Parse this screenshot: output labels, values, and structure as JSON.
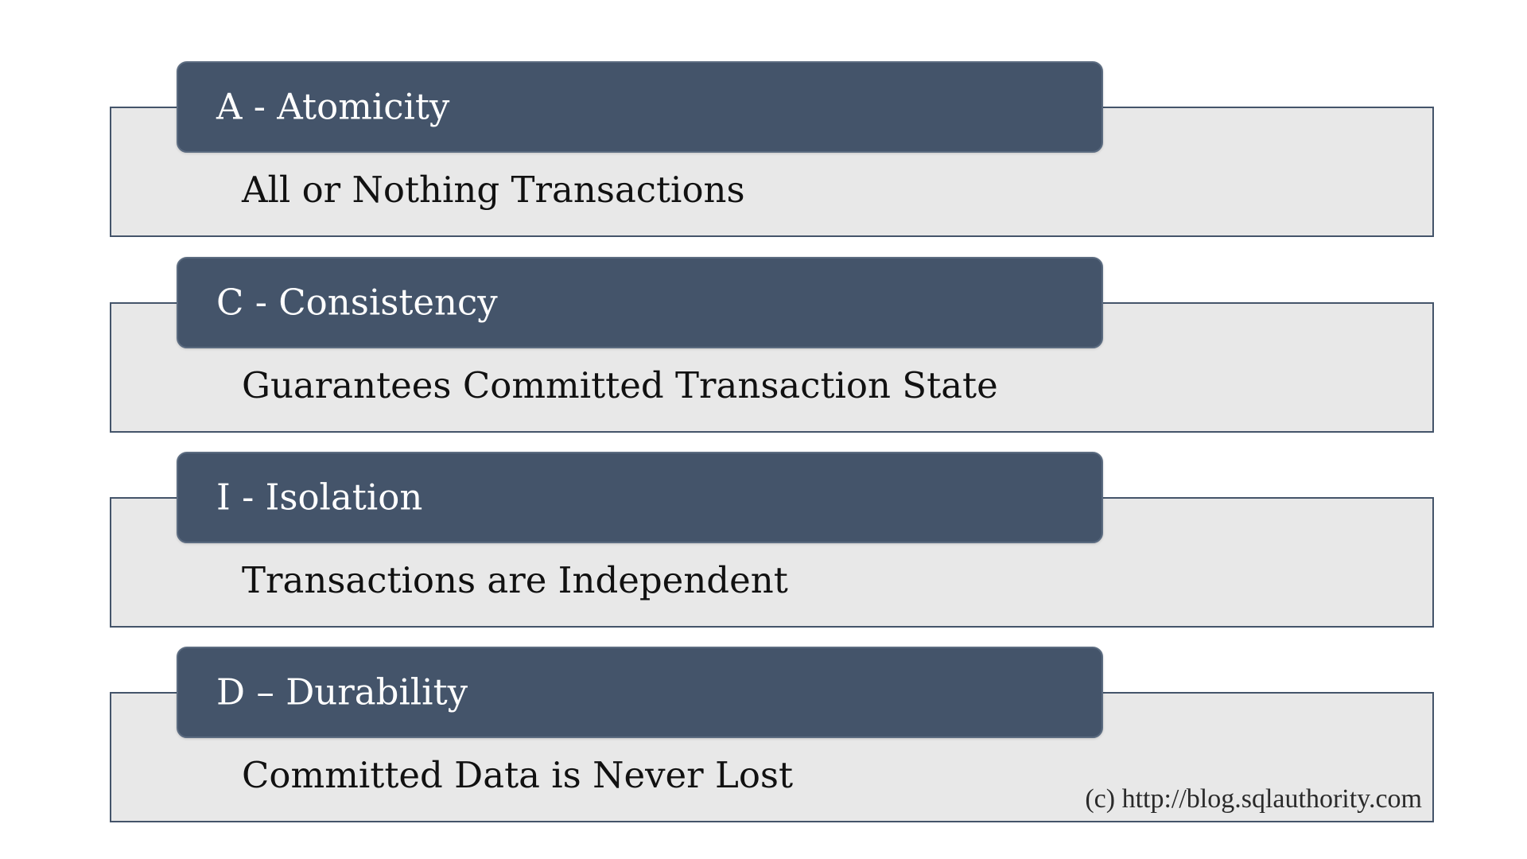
{
  "diagram": {
    "items": [
      {
        "heading": "A - Atomicity",
        "description": "All or Nothing Transactions"
      },
      {
        "heading": "C - Consistency",
        "description": "Guarantees Committed Transaction State"
      },
      {
        "heading": "I - Isolation",
        "description": "Transactions are Independent"
      },
      {
        "heading": "D – Durability",
        "description": "Committed Data is Never Lost"
      }
    ],
    "copyright": "(c) http://blog.sqlauthority.com"
  },
  "colors": {
    "header_fill": "#44546a",
    "box_fill": "#e8e8e8",
    "box_border": "#44546a",
    "header_text": "#ffffff",
    "body_text": "#111111"
  }
}
